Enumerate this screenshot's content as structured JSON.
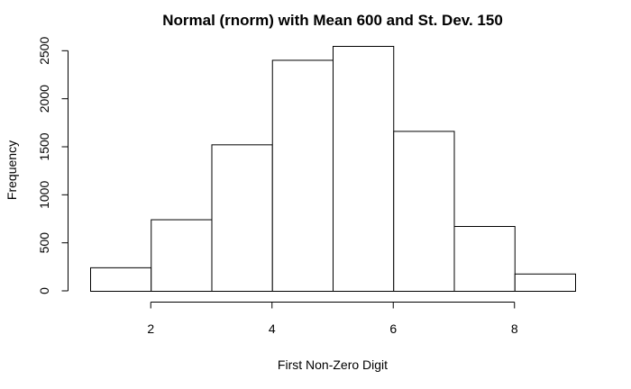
{
  "chart_data": {
    "type": "bar",
    "title": "Normal (rnorm) with Mean 600 and St. Dev. 150",
    "xlabel": "First Non-Zero Digit",
    "ylabel": "Frequency",
    "bins": [
      {
        "start": 1,
        "end": 2,
        "count": 245
      },
      {
        "start": 2,
        "end": 3,
        "count": 745
      },
      {
        "start": 3,
        "end": 4,
        "count": 1525
      },
      {
        "start": 4,
        "end": 5,
        "count": 2405
      },
      {
        "start": 5,
        "end": 6,
        "count": 2550
      },
      {
        "start": 6,
        "end": 7,
        "count": 1665
      },
      {
        "start": 7,
        "end": 8,
        "count": 675
      },
      {
        "start": 8,
        "end": 9,
        "count": 180
      }
    ],
    "xlim": [
      1,
      9
    ],
    "ylim": [
      0,
      2550
    ],
    "x_ticks": [
      "2",
      "4",
      "6",
      "8"
    ],
    "y_ticks": [
      "0",
      "500",
      "1000",
      "1500",
      "2000",
      "2500"
    ],
    "bar_fill": "#ffffff",
    "bar_stroke": "#000000",
    "grid": false,
    "legend": false
  }
}
